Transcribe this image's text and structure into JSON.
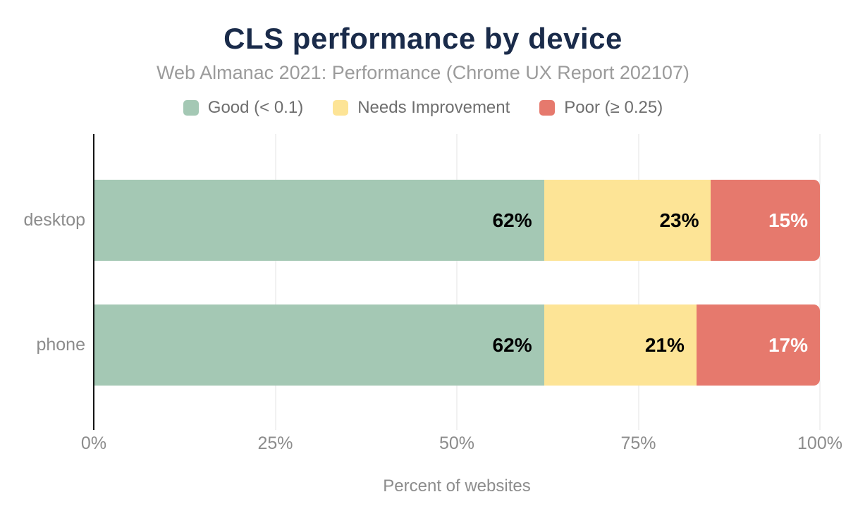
{
  "chart_data": {
    "type": "bar",
    "orientation": "horizontal",
    "stacked": true,
    "title": "CLS performance by device",
    "subtitle": "Web Almanac 2021: Performance (Chrome UX Report 202107)",
    "xlabel": "Percent of websites",
    "xlim": [
      0,
      100
    ],
    "x_ticks": [
      "0%",
      "25%",
      "50%",
      "75%",
      "100%"
    ],
    "grid": true,
    "legend_position": "top",
    "categories": [
      "desktop",
      "phone"
    ],
    "series": [
      {
        "name": "Good (< 0.1)",
        "color": "#a4c8b4",
        "label_color": "#000000",
        "values": [
          62,
          62
        ]
      },
      {
        "name": "Needs Improvement",
        "color": "#fde496",
        "label_color": "#000000",
        "values": [
          23,
          21
        ]
      },
      {
        "name": "Poor (≥ 0.25)",
        "color": "#e6796d",
        "label_color": "#ffffff",
        "values": [
          15,
          17
        ]
      }
    ],
    "data_labels": [
      [
        "62%",
        "23%",
        "15%"
      ],
      [
        "62%",
        "21%",
        "17%"
      ]
    ]
  },
  "colors": {
    "title": "#1a2b4a",
    "subtitle": "#9b9b9b",
    "legend_text": "#6e6e6e",
    "axis_text": "#8c8c8c",
    "axis_line": "#141414",
    "gridline": "#f1f1f1",
    "background": "#ffffff"
  }
}
